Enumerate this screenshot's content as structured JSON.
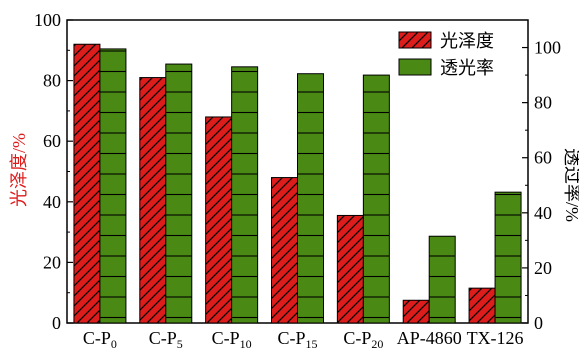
{
  "chart_data": {
    "type": "bar",
    "categories": [
      {
        "base": "C-P",
        "sub": "0"
      },
      {
        "base": "C-P",
        "sub": "5"
      },
      {
        "base": "C-P",
        "sub": "10"
      },
      {
        "base": "C-P",
        "sub": "15"
      },
      {
        "base": "C-P",
        "sub": "20"
      },
      {
        "base": "AP-4860",
        "sub": ""
      },
      {
        "base": "TX-126",
        "sub": ""
      }
    ],
    "series": [
      {
        "name": "光泽度",
        "axis": "left",
        "color": "#dd1c1c",
        "hatch": "diagonal",
        "values": [
          92,
          81,
          68,
          48,
          35.5,
          7.5,
          11.5
        ]
      },
      {
        "name": "透光率",
        "axis": "right",
        "color": "#4a8a14",
        "hatch": "horizontal",
        "values": [
          99.5,
          94,
          93,
          90.5,
          90,
          31.5,
          47.5
        ]
      }
    ],
    "left_axis": {
      "label": "光泽度/%",
      "label_color": "#dd1c1c",
      "ylim": [
        0,
        100
      ],
      "ticks": [
        0,
        20,
        40,
        60,
        80,
        100
      ]
    },
    "right_axis": {
      "label": "透过率/%",
      "label_color": "#000000",
      "ylim": [
        0,
        110
      ],
      "ticks": [
        0,
        20,
        40,
        60,
        80,
        100
      ]
    },
    "legend": {
      "placement": "top-right"
    },
    "grid": false
  }
}
